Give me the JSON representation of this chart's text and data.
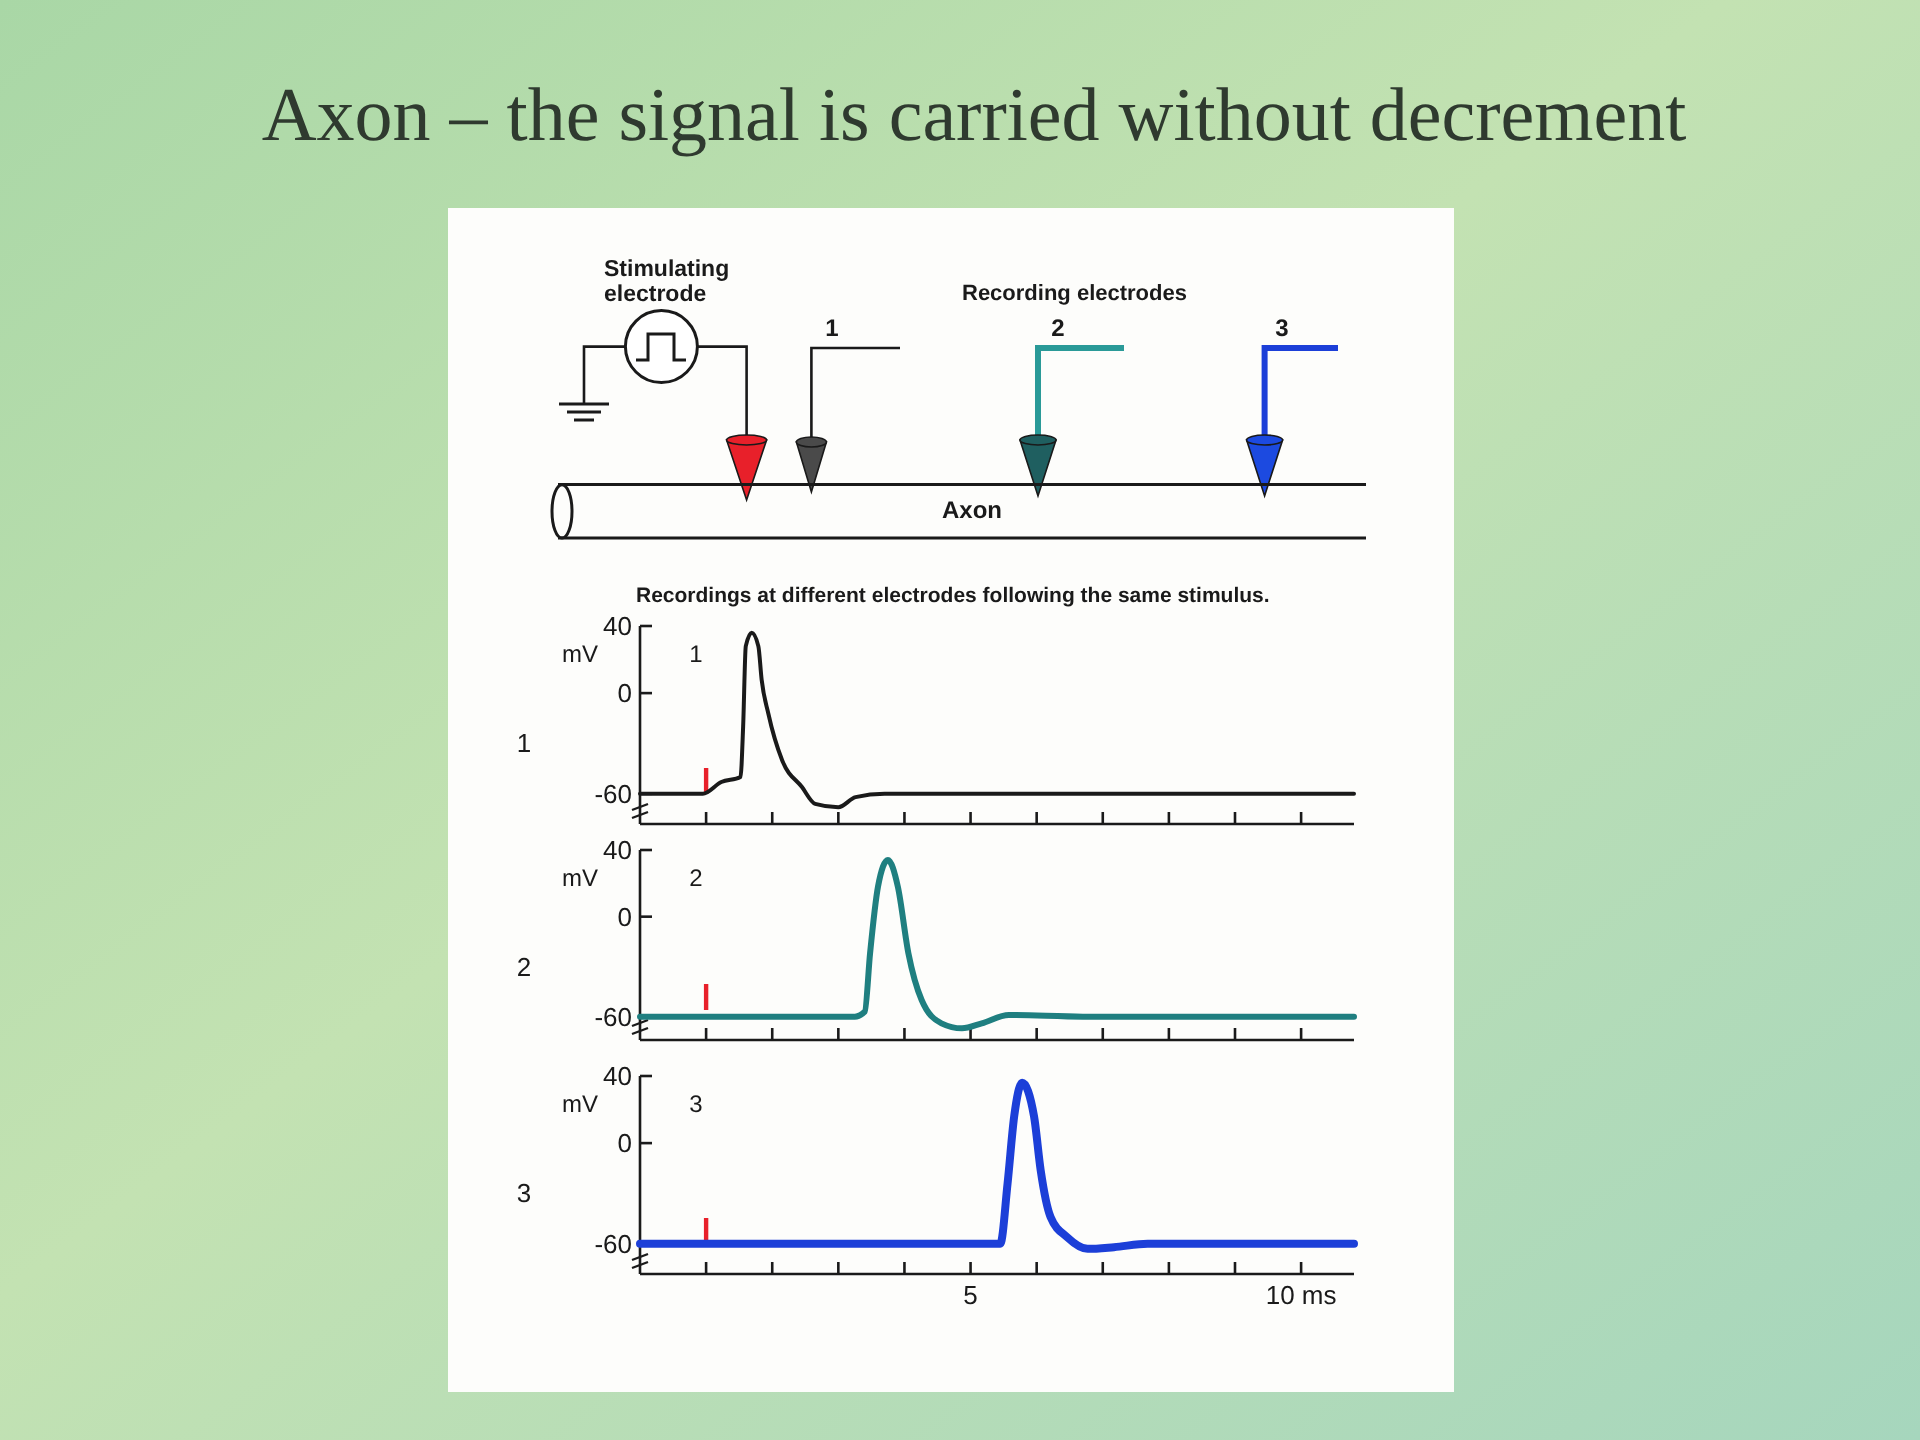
{
  "chart_data": [
    {
      "type": "other",
      "title": "Axon – the signal is carried without decrement",
      "annotations": [
        "Stimulating electrode",
        "Recording electrodes",
        "1",
        "2",
        "3",
        "Axon"
      ]
    },
    {
      "type": "line",
      "title": "Recordings at different electrodes following the same stimulus.",
      "ylabel": "mV",
      "annotations": [
        "1"
      ],
      "xlim": [
        0,
        10.8
      ],
      "ylim": [
        -78,
        40
      ],
      "xticks": [
        {
          "value": 1,
          "label": null
        },
        {
          "value": 2,
          "label": null
        },
        {
          "value": 3,
          "label": null
        },
        {
          "value": 4,
          "label": null
        },
        {
          "value": 5,
          "label": null
        },
        {
          "value": 6,
          "label": null
        },
        {
          "value": 7,
          "label": null
        },
        {
          "value": 8,
          "label": null
        },
        {
          "value": 9,
          "label": null
        },
        {
          "value": 10,
          "label": null
        }
      ],
      "yticks": [
        -60,
        0,
        40
      ],
      "tick_labels": "y",
      "ref_lines": [
        {
          "axis": "x",
          "value": 1,
          "color": "#e8202a"
        }
      ],
      "series": [
        {
          "name": "1",
          "color": "#1a1a1a",
          "x": [
            0,
            0.95,
            1.23,
            1.52,
            1.56,
            1.6,
            1.69,
            1.79,
            1.84,
            1.94,
            2.15,
            2.45,
            2.65,
            3.0,
            3.26,
            3.7,
            10.8
          ],
          "values": [
            -60,
            -60,
            -53,
            -50,
            -20,
            28,
            36,
            28,
            8,
            -12,
            -40,
            -56,
            -66,
            -68,
            -62,
            -60,
            -60
          ]
        }
      ]
    },
    {
      "type": "line",
      "ylabel": "mV",
      "annotations": [
        "2"
      ],
      "xlim": [
        0,
        10.8
      ],
      "ylim": [
        -74,
        40
      ],
      "xticks": [
        {
          "value": 1,
          "label": null
        },
        {
          "value": 2,
          "label": null
        },
        {
          "value": 3,
          "label": null
        },
        {
          "value": 4,
          "label": null
        },
        {
          "value": 5,
          "label": null
        },
        {
          "value": 6,
          "label": null
        },
        {
          "value": 7,
          "label": null
        },
        {
          "value": 8,
          "label": null
        },
        {
          "value": 9,
          "label": null
        },
        {
          "value": 10,
          "label": null
        }
      ],
      "yticks": [
        -60,
        0,
        40
      ],
      "tick_labels": "y",
      "ref_lines": [
        {
          "axis": "x",
          "value": 1,
          "color": "#e8202a"
        }
      ],
      "series": [
        {
          "name": "2",
          "color": "#1f7f80",
          "x": [
            0,
            3.25,
            3.4,
            3.48,
            3.6,
            3.75,
            3.9,
            4.06,
            4.26,
            4.56,
            4.87,
            5.17,
            5.58,
            6.7,
            10.8
          ],
          "values": [
            -60,
            -60,
            -57,
            -22,
            18,
            34,
            18,
            -22,
            -50,
            -64,
            -67,
            -64,
            -59,
            -60,
            -60
          ]
        }
      ]
    },
    {
      "type": "line",
      "ylabel": "mV",
      "annotations": [
        "3"
      ],
      "xlim": [
        0,
        10.8
      ],
      "ylim": [
        -78,
        40
      ],
      "xticks": [
        {
          "value": 1,
          "label": null
        },
        {
          "value": 2,
          "label": null
        },
        {
          "value": 3,
          "label": null
        },
        {
          "value": 4,
          "label": null
        },
        5,
        {
          "value": 6,
          "label": null
        },
        {
          "value": 7,
          "label": null
        },
        {
          "value": 8,
          "label": null
        },
        {
          "value": 9,
          "label": null
        },
        {
          "value": 10,
          "label": "10 ms"
        }
      ],
      "yticks": [
        -60,
        0,
        40
      ],
      "ref_lines": [
        {
          "axis": "x",
          "value": 1,
          "color": "#e8202a"
        }
      ],
      "series": [
        {
          "name": "3",
          "color": "#1c3fd8",
          "x": [
            0,
            5.45,
            5.56,
            5.66,
            5.78,
            5.96,
            6.06,
            6.21,
            6.46,
            6.77,
            7.17,
            7.68,
            10.8
          ],
          "values": [
            -60,
            -60,
            -24,
            16,
            36,
            16,
            -16,
            -44,
            -56,
            -63,
            -62,
            -60,
            -60
          ]
        }
      ]
    }
  ]
}
